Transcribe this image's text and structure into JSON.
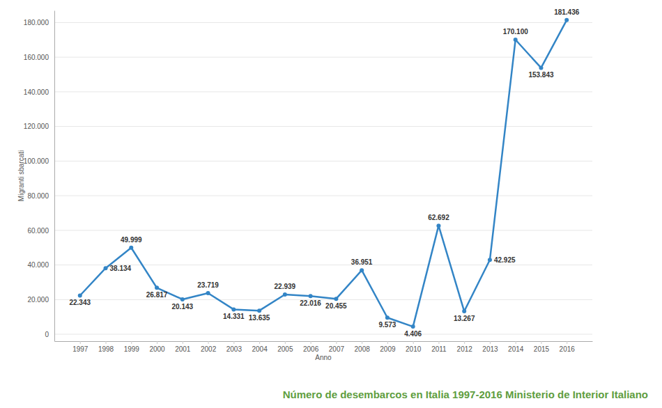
{
  "chart_data": {
    "type": "line",
    "title": "Número de desembarcos en Italia 1997-2016 Ministerio de Interior Italiano",
    "x_label": "Anno",
    "y_label": "Migranti sbarcati",
    "categories": [
      "1997",
      "1998",
      "1999",
      "2000",
      "2001",
      "2002",
      "2003",
      "2004",
      "2005",
      "2006",
      "2007",
      "2008",
      "2009",
      "2010",
      "2011",
      "2012",
      "2013",
      "2014",
      "2015",
      "2016"
    ],
    "values": [
      22343,
      38134,
      49999,
      26817,
      20143,
      23719,
      14331,
      13635,
      22939,
      22016,
      20455,
      36951,
      9573,
      4406,
      62692,
      13267,
      42925,
      170100,
      153843,
      181436
    ],
    "value_labels": [
      "22.343",
      "38.134",
      "49.999",
      "26.817",
      "20.143",
      "23.719",
      "14.331",
      "13.635",
      "22.939",
      "22.016",
      "20.455",
      "36.951",
      "9.573",
      "4.406",
      "62.692",
      "13.267",
      "42.925",
      "170.100",
      "153.843",
      "181.436"
    ],
    "color": "#3385c6",
    "marker": "circle",
    "line_style": "solid",
    "data_labels": true,
    "grid": true,
    "ylim": [
      -4000,
      187000
    ],
    "yticks": [
      0,
      {
        "value": 20000,
        "label": "20.000"
      },
      {
        "value": 40000,
        "label": "40.000"
      },
      {
        "value": 60000,
        "label": "60.000"
      },
      {
        "value": 80000,
        "label": "80.000"
      },
      {
        "value": 100000,
        "label": "100.000"
      },
      {
        "value": 120000,
        "label": "120.000"
      },
      {
        "value": 140000,
        "label": "140.000"
      },
      {
        "value": 160000,
        "label": "160.000"
      },
      {
        "value": 180000,
        "label": "180.000"
      }
    ]
  }
}
